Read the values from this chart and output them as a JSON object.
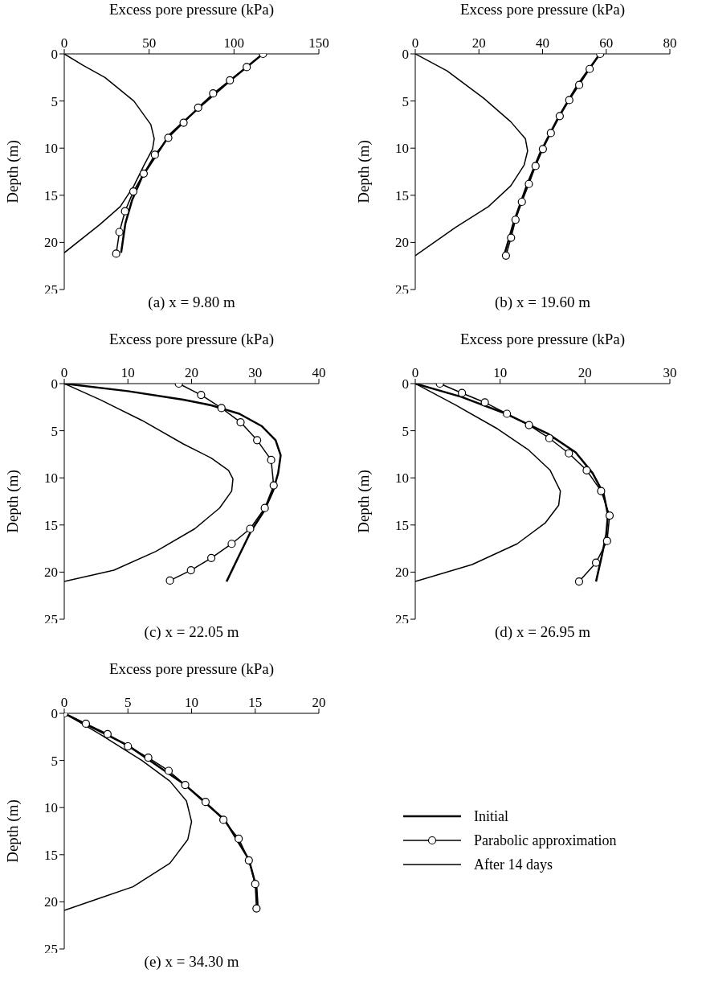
{
  "chart_data": [
    {
      "type": "line",
      "title": "(a) x = 9.80 m",
      "xlabel": "Excess pore pressure (kPa)",
      "ylabel": "Depth (m)",
      "xlim": [
        0,
        150
      ],
      "xticks": [
        0,
        50,
        100,
        150
      ],
      "ylim": [
        25,
        0
      ],
      "yticks": [
        0,
        5,
        10,
        15,
        20,
        25
      ],
      "series": [
        {
          "color": "#000000",
          "marker": "none",
          "x": [
            117,
            98,
            80,
            62,
            54,
            46,
            40,
            36,
            33.5
          ],
          "values": [
            0,
            2.8,
            5.6,
            8.6,
            10.8,
            13,
            15.5,
            18,
            21.1
          ]
        },
        {
          "color": "#000000",
          "marker": "circle",
          "x": [
            117.1,
            107.5,
            97.6,
            87.7,
            78.9,
            70.3,
            61.3,
            53.4,
            46.8,
            40.7,
            35.8,
            32.5,
            30.6
          ],
          "values": [
            0,
            1.4,
            2.8,
            4.2,
            5.7,
            7.3,
            8.9,
            10.7,
            12.7,
            14.6,
            16.7,
            18.9,
            21.2
          ]
        },
        {
          "color": "#000000",
          "marker": "none",
          "x": [
            0,
            11,
            24,
            41,
            51,
            53,
            52,
            47,
            41,
            33,
            21,
            0
          ],
          "values": [
            0,
            1.2,
            2.5,
            5,
            7.5,
            9,
            10.1,
            11.8,
            14,
            16.2,
            18.1,
            21.1
          ]
        }
      ]
    },
    {
      "type": "line",
      "title": "(b) x = 19.60 m",
      "xlabel": "Excess pore pressure (kPa)",
      "ylabel": "Depth (m)",
      "xlim": [
        0,
        80
      ],
      "xticks": [
        0,
        20,
        40,
        60,
        80
      ],
      "ylim": [
        25,
        0
      ],
      "yticks": [
        0,
        5,
        10,
        15,
        20,
        25
      ],
      "series": [
        {
          "color": "#000000",
          "marker": "none",
          "x": [
            58,
            51,
            45,
            39.5,
            35,
            31,
            28
          ],
          "values": [
            0,
            3.3,
            6.7,
            10.3,
            14,
            17.8,
            21.3
          ]
        },
        {
          "color": "#000000",
          "marker": "circle",
          "x": [
            58.1,
            54.8,
            51.5,
            48.4,
            45.4,
            42.6,
            40.1,
            37.8,
            35.7,
            33.5,
            31.5,
            30.1,
            28.5
          ],
          "values": [
            0,
            1.6,
            3.3,
            4.9,
            6.6,
            8.4,
            10.1,
            11.9,
            13.8,
            15.7,
            17.6,
            19.5,
            21.4
          ]
        },
        {
          "color": "#000000",
          "marker": "none",
          "x": [
            0,
            10,
            21.5,
            30,
            34.6,
            35.3,
            34.2,
            30,
            23,
            12.7,
            0
          ],
          "values": [
            0,
            1.8,
            4.7,
            7.2,
            9,
            10.3,
            11.8,
            14,
            16.2,
            18.4,
            21.4
          ]
        }
      ]
    },
    {
      "type": "line",
      "title": "(c) x = 22.05 m",
      "xlabel": "Excess pore pressure (kPa)",
      "ylabel": "Depth (m)",
      "xlim": [
        0,
        40
      ],
      "xticks": [
        0,
        10,
        20,
        30,
        40
      ],
      "ylim": [
        25,
        0
      ],
      "yticks": [
        0,
        5,
        10,
        15,
        20,
        25
      ],
      "series": [
        {
          "color": "#000000",
          "marker": "none",
          "x": [
            0,
            10,
            18.7,
            23.1,
            27.5,
            31,
            33.2,
            34,
            33.6,
            32.8,
            31.4,
            29.3,
            27.5,
            25.5
          ],
          "values": [
            0,
            0.8,
            1.7,
            2.3,
            3.2,
            4.5,
            6,
            7.6,
            9.5,
            11.4,
            13.5,
            15.7,
            18.2,
            21
          ]
        },
        {
          "color": "#000000",
          "marker": "circle",
          "x": [
            18,
            21.5,
            24.7,
            27.7,
            30.3,
            32.5,
            32.9,
            31.5,
            29.2,
            26.3,
            23.1,
            19.9,
            16.6
          ],
          "values": [
            0,
            1.2,
            2.6,
            4.1,
            6,
            8.1,
            10.8,
            13.2,
            15.4,
            17,
            18.5,
            19.8,
            20.9
          ]
        },
        {
          "color": "#000000",
          "marker": "none",
          "x": [
            0,
            5.6,
            12.2,
            18.7,
            23.1,
            25.8,
            26.5,
            26.3,
            24.4,
            20.5,
            14.4,
            7.8,
            0
          ],
          "values": [
            0,
            1.7,
            3.9,
            6.4,
            7.9,
            9.2,
            10.1,
            11.4,
            13.2,
            15.4,
            17.8,
            19.8,
            21
          ]
        }
      ]
    },
    {
      "type": "line",
      "title": "(d) x = 26.95 m",
      "xlabel": "Excess pore pressure (kPa)",
      "ylabel": "Depth (m)",
      "xlim": [
        0,
        30
      ],
      "xticks": [
        0,
        10,
        20,
        30
      ],
      "ylim": [
        25,
        0
      ],
      "yticks": [
        0,
        5,
        10,
        15,
        20,
        25
      ],
      "series": [
        {
          "color": "#000000",
          "marker": "none",
          "x": [
            0,
            5.4,
            10.7,
            15.6,
            18.9,
            20.9,
            22.2,
            22.7,
            22.5,
            22,
            21.3
          ],
          "values": [
            0,
            1.4,
            3.2,
            5.3,
            7.3,
            9.5,
            11.7,
            13.9,
            16,
            18.2,
            21
          ]
        },
        {
          "color": "#000000",
          "marker": "circle",
          "x": [
            2.9,
            5.5,
            8.2,
            10.8,
            13.4,
            15.8,
            18.1,
            20.2,
            21.9,
            22.9,
            22.6,
            21.3,
            19.3
          ],
          "values": [
            0,
            1,
            2,
            3.2,
            4.4,
            5.8,
            7.4,
            9.2,
            11.4,
            14,
            16.7,
            19,
            21
          ]
        },
        {
          "color": "#000000",
          "marker": "none",
          "x": [
            0,
            4.8,
            9.7,
            13.3,
            15.9,
            17.1,
            16.9,
            15.3,
            12,
            6.7,
            0
          ],
          "values": [
            0,
            2.3,
            4.8,
            7,
            9.2,
            11.4,
            12.9,
            14.8,
            17,
            19.2,
            21
          ]
        }
      ]
    },
    {
      "type": "line",
      "title": "(e) x = 34.30 m",
      "xlabel": "Excess pore pressure (kPa)",
      "ylabel": "Depth (m)",
      "xlim": [
        0,
        20
      ],
      "xticks": [
        0,
        5,
        10,
        15,
        20
      ],
      "ylim": [
        25,
        0
      ],
      "yticks": [
        0,
        5,
        10,
        15,
        20,
        25
      ],
      "legend": "right",
      "series": [
        {
          "name": "Initial",
          "color": "#000000",
          "marker": "none",
          "x": [
            0,
            5,
            9.5,
            12.6,
            14.5,
            15.1,
            15.2
          ],
          "values": [
            0,
            3.4,
            7.6,
            11.3,
            15.5,
            18.5,
            20.7
          ]
        },
        {
          "name": "Parabolic approximation",
          "color": "#000000",
          "marker": "circle",
          "x": [
            0,
            1.7,
            3.4,
            5,
            6.6,
            8.2,
            9.5,
            11.1,
            12.5,
            13.7,
            14.5,
            15,
            15.1
          ],
          "values": [
            0,
            1.1,
            2.2,
            3.5,
            4.7,
            6.1,
            7.6,
            9.4,
            11.3,
            13.3,
            15.6,
            18.1,
            20.7
          ]
        },
        {
          "name": "After 14 days",
          "color": "#000000",
          "marker": "none",
          "x": [
            0,
            2.8,
            6.1,
            8.3,
            9.6,
            10,
            9.7,
            8.3,
            5.4,
            2.8,
            0
          ],
          "values": [
            0,
            2.2,
            5,
            7.2,
            9.3,
            11.5,
            13.4,
            15.9,
            18.4,
            19.6,
            20.9
          ]
        }
      ]
    }
  ]
}
